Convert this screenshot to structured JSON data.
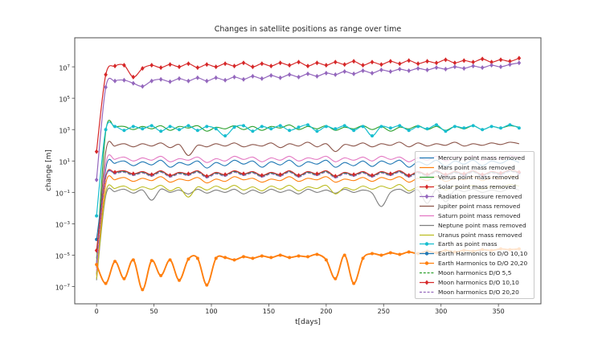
{
  "chart_data": {
    "type": "line",
    "title": "Changes in satellite positions as range over time",
    "xlabel": "t[days]",
    "ylabel": "change [m]",
    "x_ticks": [
      0,
      50,
      100,
      150,
      200,
      250,
      300,
      350
    ],
    "y_tick_exponents": [
      7,
      5,
      3,
      1,
      -1,
      -3,
      -5,
      -7
    ],
    "xlim": [
      -19,
      387
    ],
    "ylog_lim": [
      -8.1,
      8.85
    ],
    "x_start": 0,
    "x_step": 8,
    "y_scale": "log10",
    "legend_position": "lower right",
    "grid": false,
    "axis_color": "#4d4d4d",
    "series": [
      {
        "name": "Mercury point mass removed",
        "color": "#1f77b4",
        "dash": false,
        "marker": "none",
        "marker_every": 0,
        "lw": 1.1,
        "logy": [
          -6.2,
          0.5,
          0.85,
          1.0,
          0.7,
          0.95,
          0.75,
          1.05,
          0.6,
          0.9,
          0.75,
          1.0,
          0.55,
          0.9,
          0.7,
          1.05,
          0.8,
          1.0,
          0.6,
          0.95,
          0.75,
          1.05,
          0.65,
          0.95,
          0.8,
          1.05,
          0.6,
          0.9,
          0.7,
          1.0,
          0.65,
          1.0,
          0.8,
          1.05,
          0.6,
          0.95,
          0.75,
          1.05,
          0.65,
          1.0,
          0.8,
          1.05,
          0.7,
          1.0,
          0.85,
          1.1,
          0.9
        ]
      },
      {
        "name": "Mars point mass removed",
        "color": "#ff7f0e",
        "dash": false,
        "marker": "none",
        "marker_every": 0,
        "lw": 1.1,
        "logy": [
          -6.3,
          -0.45,
          -0.2,
          -0.05,
          -0.3,
          -0.1,
          -0.25,
          0.0,
          -0.35,
          -0.15,
          -0.25,
          -0.05,
          -0.4,
          -0.15,
          -0.3,
          0.0,
          -0.2,
          -0.1,
          -0.35,
          -0.15,
          -0.25,
          0.0,
          -0.3,
          -0.1,
          -0.2,
          0.0,
          -0.35,
          -0.15,
          -0.25,
          -0.05,
          -0.3,
          -0.05,
          -0.2,
          0.0,
          -0.35,
          -0.1,
          -0.25,
          0.0,
          -0.3,
          -0.1,
          -0.2,
          0.0,
          -0.25,
          -0.05,
          -0.15,
          0.05,
          -0.1
        ]
      },
      {
        "name": "Venus point mass removed",
        "color": "#2ca02c",
        "dash": false,
        "marker": "none",
        "marker_every": 0,
        "lw": 1.1,
        "logy": [
          -5.5,
          2.9,
          3.15,
          3.2,
          3.0,
          3.2,
          3.05,
          3.25,
          2.95,
          3.2,
          3.1,
          3.25,
          2.9,
          3.15,
          3.05,
          3.25,
          3.0,
          3.2,
          2.95,
          3.2,
          3.1,
          3.3,
          3.0,
          3.2,
          3.05,
          3.25,
          2.95,
          3.15,
          3.05,
          3.25,
          3.0,
          3.2,
          2.9,
          3.15,
          3.05,
          3.25,
          3.0,
          3.2,
          2.95,
          3.2,
          3.05,
          3.25,
          3.0,
          3.2,
          3.1,
          3.25,
          3.15
        ]
      },
      {
        "name": "Solar point mass removed",
        "color": "#d62728",
        "dash": false,
        "marker": "diamond",
        "marker_every": 1,
        "lw": 1.2,
        "logy": [
          1.6,
          6.5,
          7.05,
          7.1,
          6.35,
          6.9,
          7.1,
          6.95,
          7.15,
          7.0,
          7.2,
          6.95,
          7.15,
          7.0,
          7.2,
          7.05,
          7.25,
          7.0,
          7.2,
          7.05,
          7.25,
          7.1,
          7.3,
          7.05,
          7.25,
          7.1,
          7.3,
          7.15,
          7.35,
          7.1,
          7.3,
          7.15,
          7.35,
          7.2,
          7.4,
          7.2,
          7.35,
          7.25,
          7.45,
          7.25,
          7.4,
          7.3,
          7.5,
          7.3,
          7.45,
          7.35,
          7.55
        ]
      },
      {
        "name": "Radiation pressure removed",
        "color": "#9467bd",
        "dash": false,
        "marker": "diamond",
        "marker_every": 1,
        "lw": 1.2,
        "logy": [
          -0.2,
          5.7,
          6.1,
          6.15,
          5.95,
          5.75,
          6.1,
          6.2,
          6.05,
          6.25,
          6.1,
          6.3,
          6.1,
          6.3,
          6.15,
          6.35,
          6.2,
          6.4,
          6.25,
          6.45,
          6.3,
          6.5,
          6.35,
          6.55,
          6.4,
          6.6,
          6.5,
          6.7,
          6.55,
          6.75,
          6.6,
          6.8,
          6.7,
          6.85,
          6.75,
          6.9,
          6.8,
          6.95,
          6.85,
          7.0,
          6.9,
          7.05,
          6.95,
          7.1,
          7.0,
          7.15,
          7.25
        ]
      },
      {
        "name": "Jupiter point mass removed",
        "color": "#8c564b",
        "dash": false,
        "marker": "none",
        "marker_every": 0,
        "lw": 1.1,
        "logy": [
          -5.8,
          1.6,
          1.95,
          2.1,
          1.9,
          2.1,
          1.95,
          2.15,
          1.85,
          2.05,
          1.35,
          2.0,
          1.9,
          2.1,
          1.95,
          2.15,
          1.9,
          2.05,
          1.95,
          2.15,
          1.85,
          2.1,
          1.95,
          2.2,
          1.9,
          2.1,
          1.6,
          2.05,
          1.95,
          2.15,
          1.9,
          2.1,
          2.0,
          2.2,
          1.9,
          2.15,
          1.95,
          2.1,
          2.0,
          2.2,
          1.95,
          2.1,
          2.0,
          2.15,
          2.05,
          2.2,
          2.1
        ]
      },
      {
        "name": "Saturn point mass removed",
        "color": "#e377c2",
        "dash": false,
        "marker": "none",
        "marker_every": 0,
        "lw": 1.1,
        "logy": [
          -6.0,
          0.8,
          1.1,
          1.25,
          1.0,
          1.2,
          1.05,
          1.3,
          0.95,
          1.15,
          1.05,
          1.25,
          0.9,
          1.15,
          1.0,
          1.3,
          1.1,
          1.25,
          0.95,
          1.2,
          1.05,
          1.3,
          1.0,
          1.2,
          1.1,
          1.3,
          0.95,
          1.2,
          1.05,
          1.25,
          1.0,
          1.3,
          1.1,
          1.25,
          0.95,
          1.2,
          1.05,
          1.3,
          1.0,
          1.25,
          1.1,
          1.3,
          1.05,
          1.25,
          1.1,
          1.35,
          1.2
        ]
      },
      {
        "name": "Neptune point mass removed",
        "color": "#7f7f7f",
        "dash": false,
        "marker": "none",
        "marker_every": 0,
        "lw": 1.1,
        "logy": [
          -6.6,
          -1.2,
          -0.95,
          -0.8,
          -1.05,
          -0.85,
          -1.5,
          -0.8,
          -1.0,
          -0.85,
          -1.1,
          -0.8,
          -1.05,
          -0.85,
          -1.0,
          -0.8,
          -1.1,
          -0.85,
          -1.05,
          -0.8,
          -1.0,
          -0.85,
          -1.1,
          -0.8,
          -1.0,
          -0.85,
          -1.05,
          -0.8,
          -1.0,
          -0.85,
          -1.05,
          -1.9,
          -1.0,
          -0.8,
          -1.05,
          -0.85,
          -1.7,
          -0.8,
          -1.6,
          -0.85,
          -0.95,
          -0.8,
          -1.0,
          -0.85,
          -0.95,
          -0.75,
          -0.85
        ]
      },
      {
        "name": "Uranus point mass removed",
        "color": "#bcbd22",
        "dash": false,
        "marker": "none",
        "marker_every": 0,
        "lw": 1.1,
        "logy": [
          -6.5,
          -1.0,
          -0.75,
          -0.6,
          -0.85,
          -0.65,
          -0.8,
          -0.55,
          -0.9,
          -0.7,
          -1.3,
          -0.65,
          -0.85,
          -0.6,
          -0.8,
          -0.55,
          -0.85,
          -0.65,
          -0.9,
          -0.6,
          -0.8,
          -0.55,
          -0.9,
          -0.65,
          -0.75,
          -0.55,
          -1.1,
          -0.7,
          -0.85,
          -0.6,
          -0.8,
          -0.6,
          -0.75,
          -0.5,
          -0.9,
          -0.65,
          -0.8,
          -0.55,
          -0.85,
          -0.6,
          -0.75,
          -0.55,
          -0.8,
          -0.6,
          -0.7,
          -0.5,
          -0.6
        ]
      },
      {
        "name": "Earth as point mass",
        "color": "#17becf",
        "dash": false,
        "marker": "dot",
        "marker_every": 1,
        "lw": 1.2,
        "logy": [
          -2.5,
          3.0,
          3.2,
          2.95,
          3.2,
          3.05,
          3.25,
          2.9,
          3.2,
          3.0,
          3.25,
          2.95,
          3.2,
          3.05,
          2.6,
          3.15,
          3.25,
          2.9,
          3.2,
          3.05,
          3.25,
          2.95,
          3.15,
          3.3,
          2.9,
          3.2,
          3.05,
          3.25,
          2.95,
          3.2,
          2.6,
          3.2,
          3.1,
          3.25,
          2.95,
          3.2,
          3.05,
          3.3,
          2.9,
          3.2,
          3.1,
          3.25,
          3.0,
          3.2,
          3.1,
          3.3,
          3.1
        ]
      },
      {
        "name": "Earth Harmonics to D/O 10,10",
        "color": "#1f77b4",
        "dash": false,
        "marker": "dot",
        "marker_every": 2,
        "lw": 1.1,
        "logy": [
          -4.0,
          0.0,
          0.25,
          0.35,
          0.15,
          0.3,
          0.1,
          0.35,
          0.05,
          0.25,
          0.15,
          0.35,
          0.0,
          0.25,
          0.1,
          0.35,
          0.15,
          0.3,
          0.05,
          0.25,
          0.1,
          0.35,
          0.05,
          0.3,
          0.15,
          0.35,
          0.0,
          0.25,
          0.1,
          0.3,
          0.05,
          0.3,
          0.15,
          0.35,
          0.05,
          0.3,
          0.1,
          0.35,
          0.1,
          0.3,
          0.15,
          0.35,
          0.1,
          0.3,
          0.2,
          0.4,
          0.25
        ]
      },
      {
        "name": "Earth Harmonics to D/O 20,20",
        "color": "#ff7f0e",
        "dash": false,
        "marker": "dot",
        "marker_every": 1,
        "lw": 1.9,
        "logy": [
          -5.6,
          -6.8,
          -5.4,
          -6.5,
          -5.3,
          -7.2,
          -5.35,
          -6.3,
          -5.3,
          -6.6,
          -5.25,
          -5.2,
          -6.9,
          -5.2,
          -5.15,
          -5.3,
          -5.1,
          -5.2,
          -5.05,
          -5.15,
          -5.0,
          -5.15,
          -5.05,
          -5.1,
          -4.95,
          -5.3,
          -6.5,
          -5.0,
          -6.8,
          -5.2,
          -4.9,
          -5.0,
          -4.85,
          -4.95,
          -4.8,
          -4.9,
          -4.75,
          -4.85,
          -4.7,
          -4.8,
          -4.7,
          -4.75,
          -4.65,
          -4.7,
          -4.6,
          -4.65,
          -4.6
        ]
      },
      {
        "name": "Moon harmonics D/O 5,5",
        "color": "#2ca02c",
        "dash": true,
        "marker": "none",
        "marker_every": 0,
        "lw": 1.1,
        "logy": [
          -5.2,
          -0.04,
          0.21,
          0.31,
          0.11,
          0.26,
          0.06,
          0.31,
          0.01,
          0.21,
          0.11,
          0.31,
          -0.04,
          0.21,
          0.06,
          0.31,
          0.11,
          0.26,
          0.01,
          0.21,
          0.06,
          0.31,
          0.01,
          0.26,
          0.11,
          0.31,
          -0.04,
          0.21,
          0.06,
          0.26,
          0.01,
          0.26,
          0.11,
          0.31,
          0.01,
          0.26,
          0.06,
          0.31,
          0.06,
          0.26,
          0.11,
          0.31,
          0.06,
          0.26,
          0.16,
          0.36,
          0.21
        ]
      },
      {
        "name": "Moon harmonics D/O 10,10",
        "color": "#d62728",
        "dash": false,
        "marker": "diamond",
        "marker_every": 2,
        "lw": 1.1,
        "logy": [
          -4.7,
          0.03,
          0.28,
          0.38,
          0.18,
          0.33,
          0.13,
          0.38,
          0.08,
          0.28,
          0.18,
          0.38,
          0.03,
          0.28,
          0.13,
          0.38,
          0.18,
          0.33,
          0.08,
          0.28,
          0.13,
          0.38,
          0.08,
          0.33,
          0.18,
          0.38,
          0.03,
          0.28,
          0.13,
          0.33,
          0.08,
          0.33,
          0.18,
          0.38,
          0.08,
          0.33,
          0.13,
          0.38,
          0.13,
          0.33,
          0.18,
          0.38,
          0.13,
          0.33,
          0.23,
          0.43,
          0.28
        ]
      },
      {
        "name": "Moon harmonics D/O 20,20",
        "color": "#9467bd",
        "dash": true,
        "marker": "none",
        "marker_every": 0,
        "lw": 1.1,
        "logy": [
          -5.5,
          -0.07,
          0.18,
          0.28,
          0.08,
          0.23,
          0.03,
          0.28,
          -0.02,
          0.18,
          0.08,
          0.28,
          -0.07,
          0.18,
          0.03,
          0.28,
          0.08,
          0.23,
          -0.02,
          0.18,
          0.03,
          0.28,
          -0.02,
          0.23,
          0.08,
          0.28,
          -0.07,
          0.18,
          0.03,
          0.23,
          -0.02,
          0.23,
          0.08,
          0.28,
          -0.02,
          0.23,
          0.03,
          0.28,
          0.03,
          0.23,
          0.08,
          0.28,
          0.03,
          0.23,
          0.13,
          0.33,
          0.18
        ]
      }
    ]
  }
}
